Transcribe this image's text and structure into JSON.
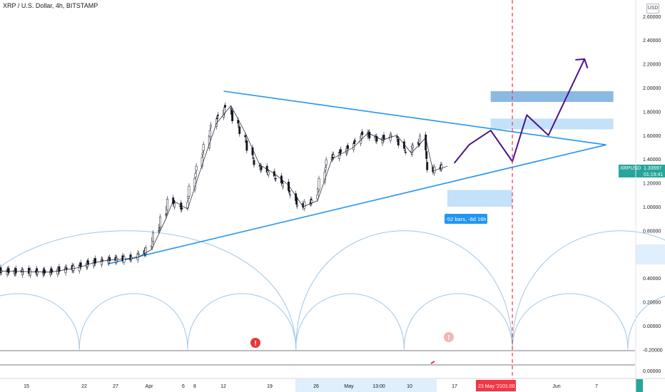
{
  "header": {
    "symbol_title": "XRP / U.S. Dollar, 4h, BITSTAMP",
    "currency": "USD"
  },
  "price_axis": {
    "ticks": [
      "2.60000",
      "2.40000",
      "2.20000",
      "2.00000",
      "1.80000",
      "1.60000",
      "1.40000",
      "1.20000",
      "1.00000",
      "0.80000",
      "0.60000",
      "0.40000",
      "0.20000",
      "0.00000",
      "-0.20000"
    ],
    "current_symbol": "XRPUSD",
    "current_price": "1.33597",
    "countdown": "01:19:41",
    "indicator_axis_tick": "0.00000"
  },
  "time_axis": {
    "ticks": [
      "15",
      "22",
      "27",
      "Apr",
      "6",
      "8",
      "12",
      "19",
      "26",
      "May",
      "13:00",
      "10",
      "17",
      "Jun",
      "7"
    ],
    "highlight_date": "23 May '21",
    "highlight_time": "01:00"
  },
  "annotations": {
    "range_label": "-52 bars, -8d 16h"
  },
  "colors": {
    "up": "#26a69a",
    "down": "#ef5350",
    "trendline": "#2196f3",
    "projection": "#4a148c",
    "cycle": "#9ec7e6",
    "vertical_marker": "#f23645",
    "zone_dark": "#6fa8dc",
    "zone_light": "#aad4f5"
  },
  "chart_data": {
    "type": "candlestick",
    "x_start": "2021-03-13",
    "x_end": "2021-06-09",
    "ylim": [
      -0.25,
      2.7
    ],
    "grid": false,
    "series": [
      {
        "name": "price",
        "points": [
          [
            "2021-03-13",
            0.46
          ],
          [
            "2021-03-20",
            0.45
          ],
          [
            "2021-03-24",
            0.49
          ],
          [
            "2021-03-26",
            0.53
          ],
          [
            "2021-03-28",
            0.55
          ],
          [
            "2021-04-01",
            0.57
          ],
          [
            "2021-04-03",
            0.64
          ],
          [
            "2021-04-05",
            0.9
          ],
          [
            "2021-04-06",
            1.05
          ],
          [
            "2021-04-08",
            0.98
          ],
          [
            "2021-04-10",
            1.35
          ],
          [
            "2021-04-12",
            1.7
          ],
          [
            "2021-04-14",
            1.85
          ],
          [
            "2021-04-16",
            1.62
          ],
          [
            "2021-04-18",
            1.35
          ],
          [
            "2021-04-20",
            1.28
          ],
          [
            "2021-04-22",
            1.18
          ],
          [
            "2021-04-24",
            1.0
          ],
          [
            "2021-04-26",
            1.05
          ],
          [
            "2021-04-28",
            1.4
          ],
          [
            "2021-05-01",
            1.5
          ],
          [
            "2021-05-03",
            1.62
          ],
          [
            "2021-05-05",
            1.56
          ],
          [
            "2021-05-07",
            1.6
          ],
          [
            "2021-05-09",
            1.45
          ],
          [
            "2021-05-11",
            1.58
          ],
          [
            "2021-05-12",
            1.3
          ],
          [
            "2021-05-14",
            1.34
          ]
        ]
      },
      {
        "name": "projection",
        "points": [
          [
            "2021-05-15",
            1.37
          ],
          [
            "2021-05-17",
            1.52
          ],
          [
            "2021-05-20",
            1.64
          ],
          [
            "2021-05-23",
            1.38
          ],
          [
            "2021-05-25",
            1.77
          ],
          [
            "2021-05-28",
            1.6
          ],
          [
            "2021-06-02",
            2.24
          ]
        ]
      }
    ],
    "trendlines": [
      {
        "from": [
          "2021-04-13",
          1.97
        ],
        "to": [
          "2021-06-05",
          1.52
        ]
      },
      {
        "from": [
          "2021-03-28",
          0.52
        ],
        "to": [
          "2021-06-05",
          1.52
        ]
      }
    ],
    "zones": [
      {
        "from": "2021-05-20",
        "to": "2021-06-06",
        "ymin": 1.88,
        "ymax": 1.97
      },
      {
        "from": "2021-05-20",
        "to": "2021-06-06",
        "ymin": 1.65,
        "ymax": 1.74
      },
      {
        "from": "2021-05-14",
        "to": "2021-05-23",
        "ymin": 1.0,
        "ymax": 1.14
      }
    ],
    "cycles": {
      "large_anchors": [
        "2021-03-07",
        "2021-04-23",
        "2021-05-23",
        "2021-06-22"
      ],
      "large_peak": 0.85,
      "small_anchors": [
        "2021-03-07",
        "2021-03-24",
        "2021-04-08",
        "2021-04-23",
        "2021-05-08",
        "2021-05-23",
        "2021-06-08",
        "2021-06-23"
      ],
      "small_peak": 0.32,
      "base": -0.2
    },
    "vertical_marker": "2021-05-23"
  }
}
